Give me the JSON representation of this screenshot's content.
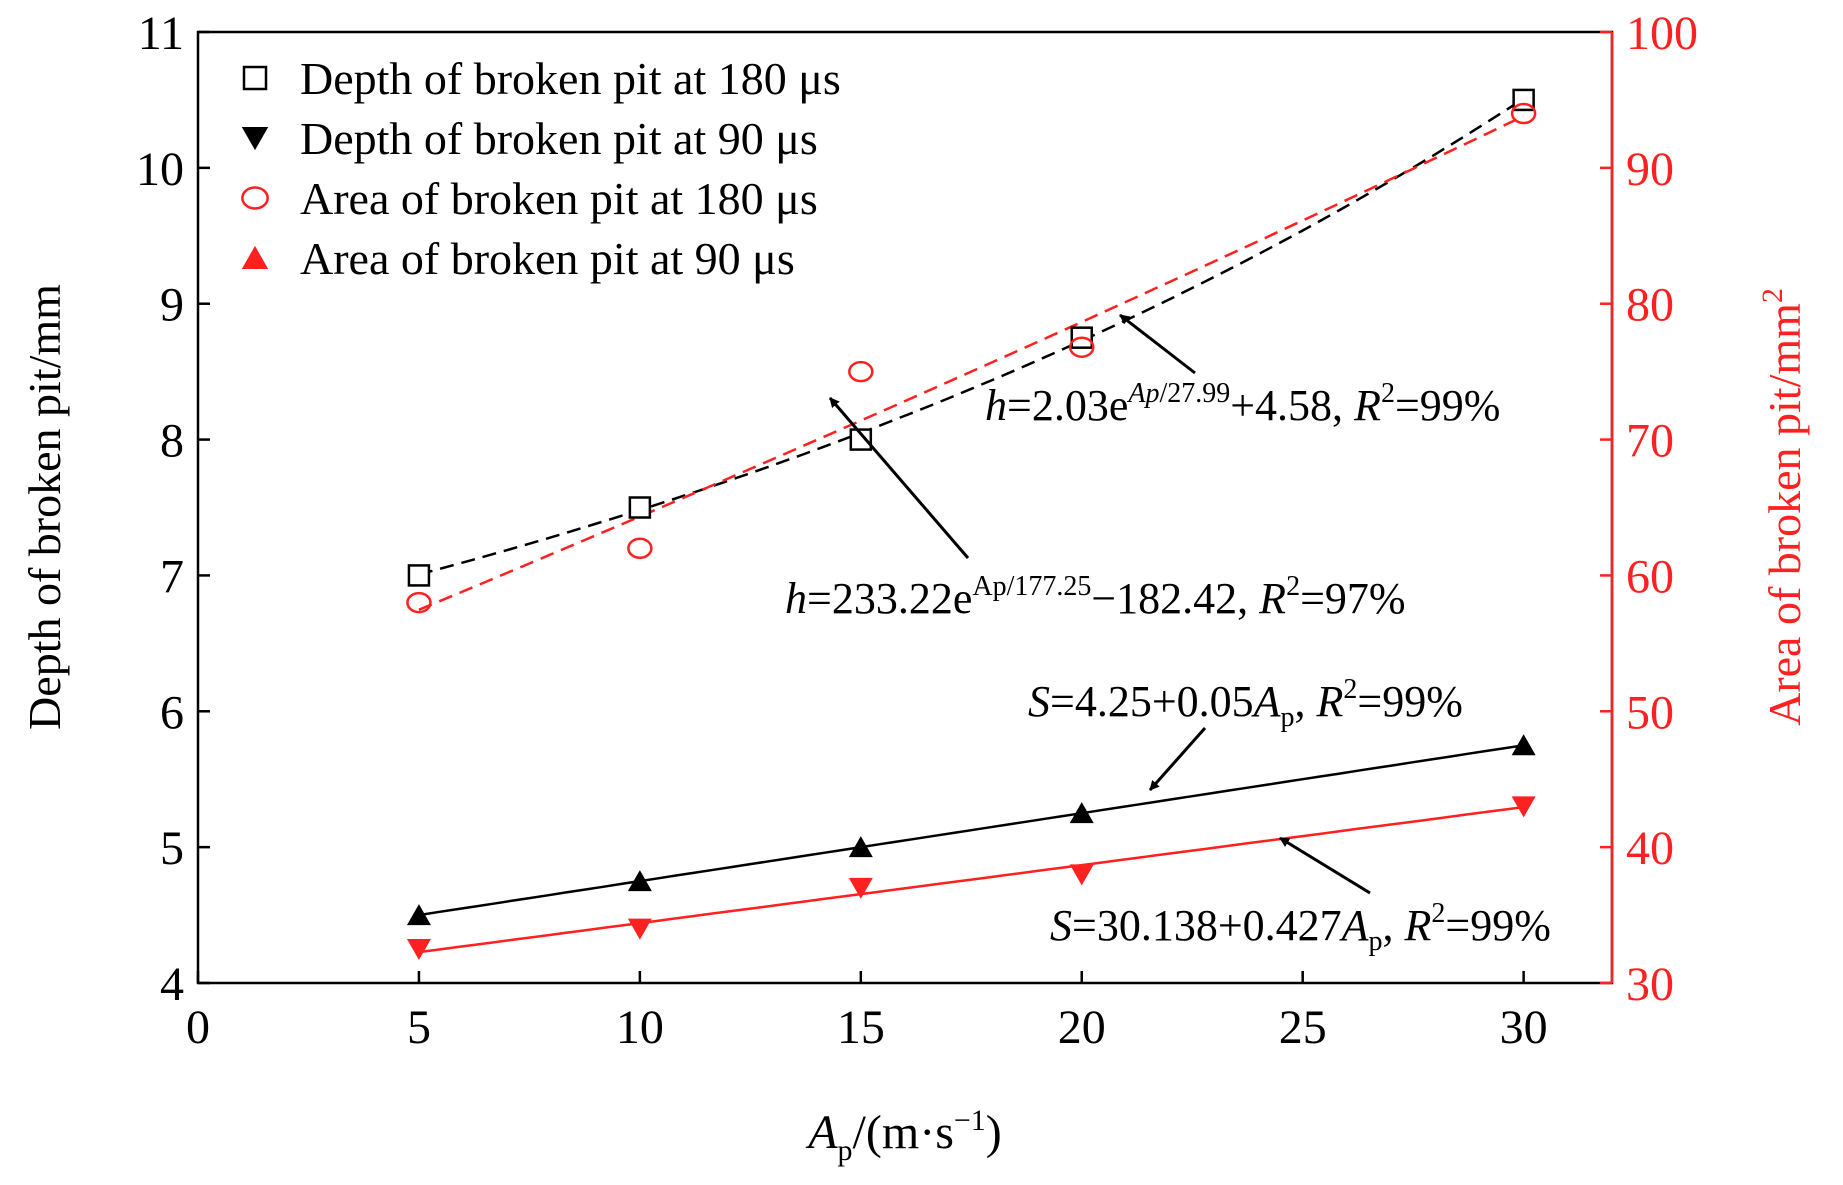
{
  "chart_data": {
    "type": "scatter",
    "xlabel_main": "A",
    "xlabel_sub": "p",
    "xlabel_unit": "/(m·s",
    "xlabel_exp": "−1",
    "xlabel_close": ")",
    "ylabel_left": "Depth of broken pit/mm",
    "ylabel_right": "Area of broken pit/mm",
    "ylabel_right_exp": "2",
    "xlim": [
      0,
      32
    ],
    "ylim_left": [
      4,
      11
    ],
    "ylim_right": [
      30,
      100
    ],
    "x_ticks": [
      "0",
      "5",
      "10",
      "15",
      "20",
      "25",
      "30"
    ],
    "y_left_ticks": [
      "4",
      "5",
      "6",
      "7",
      "8",
      "9",
      "10",
      "11"
    ],
    "y_right_ticks": [
      "30",
      "40",
      "50",
      "60",
      "70",
      "80",
      "90",
      "100"
    ],
    "colors": {
      "black": "#000000",
      "red": "#ff2020"
    },
    "series": [
      {
        "name": "Depth of broken pit at 180 μs",
        "axis": "left",
        "marker": "square-open",
        "color": "#000000",
        "x": [
          5,
          10,
          15,
          20,
          30
        ],
        "y": [
          7.0,
          7.5,
          8.0,
          8.75,
          10.5
        ]
      },
      {
        "name": "Depth of broken pit at 90 μs",
        "axis": "left",
        "marker": "triangle-down",
        "color": "#000000",
        "x": [
          5,
          10,
          15,
          20,
          30
        ],
        "y": [
          4.5,
          4.75,
          5.0,
          5.25,
          5.75
        ]
      },
      {
        "name": "Area of broken pit at 180 μs",
        "axis": "right",
        "marker": "circle-open",
        "color": "#ff2020",
        "x": [
          5,
          10,
          15,
          20,
          30
        ],
        "y": [
          58.0,
          62.0,
          75.0,
          76.8,
          94.0
        ]
      },
      {
        "name": "Area of broken pit at 90 μs",
        "axis": "right",
        "marker": "triangle-up",
        "color": "#ff2020",
        "x": [
          5,
          10,
          15,
          20,
          30
        ],
        "y": [
          32.5,
          34.0,
          37.0,
          38.0,
          43.0
        ]
      }
    ],
    "fits": [
      {
        "series": "Depth of broken pit at 180 μs",
        "style": "dashed",
        "color": "#000000",
        "axis": "left",
        "model": "exp",
        "a": 2.03,
        "b": 27.99,
        "c": 4.58,
        "x_range": [
          5,
          30
        ]
      },
      {
        "series": "Area of broken pit at 180 μs",
        "style": "dashed",
        "color": "#ff2020",
        "axis": "right",
        "model": "exp",
        "a": 233.22,
        "b": 177.25,
        "c": -182.42,
        "x_range": [
          5,
          30
        ]
      },
      {
        "series": "Depth of broken pit at 90 μs",
        "style": "solid",
        "color": "#000000",
        "axis": "left",
        "model": "linear",
        "a": 4.25,
        "b": 0.05,
        "x_range": [
          5,
          30
        ]
      },
      {
        "series": "Area of broken pit at 90 μs",
        "style": "solid",
        "color": "#ff2020",
        "axis": "right",
        "model": "linear",
        "a": 30.138,
        "b": 0.427,
        "x_range": [
          5,
          30
        ]
      }
    ],
    "annotations": [
      {
        "id": "eq1",
        "parts": [
          {
            "t": "h",
            "style": "italic"
          },
          {
            "t": "=2.03e"
          },
          {
            "t": "Ap",
            "style": "italic-sup"
          },
          {
            "t": "/27.99",
            "style": "sup"
          },
          {
            "t": "+4.58, "
          },
          {
            "t": "R",
            "style": "italic"
          },
          {
            "t": "2",
            "style": "sup"
          },
          {
            "t": "=99%"
          }
        ]
      },
      {
        "id": "eq2",
        "parts": [
          {
            "t": "h",
            "style": "italic"
          },
          {
            "t": "=233.22e"
          },
          {
            "t": "Ap/177.25",
            "style": "sup"
          },
          {
            "t": "−182.42, "
          },
          {
            "t": "R",
            "style": "italic"
          },
          {
            "t": "2",
            "style": "sup"
          },
          {
            "t": "=97%"
          }
        ]
      },
      {
        "id": "eq3",
        "parts": [
          {
            "t": "S",
            "style": "italic"
          },
          {
            "t": "=4.25+0.05"
          },
          {
            "t": "A",
            "style": "italic"
          },
          {
            "t": "p",
            "style": "sub"
          },
          {
            "t": ", "
          },
          {
            "t": "R",
            "style": "italic"
          },
          {
            "t": "2",
            "style": "sup"
          },
          {
            "t": "=99%"
          }
        ]
      },
      {
        "id": "eq4",
        "parts": [
          {
            "t": "S",
            "style": "italic"
          },
          {
            "t": "=30.138+0.427"
          },
          {
            "t": "A",
            "style": "italic"
          },
          {
            "t": "p",
            "style": "sub"
          },
          {
            "t": ", "
          },
          {
            "t": "R",
            "style": "italic"
          },
          {
            "t": "2",
            "style": "sup"
          },
          {
            "t": "=99%"
          }
        ]
      }
    ]
  }
}
